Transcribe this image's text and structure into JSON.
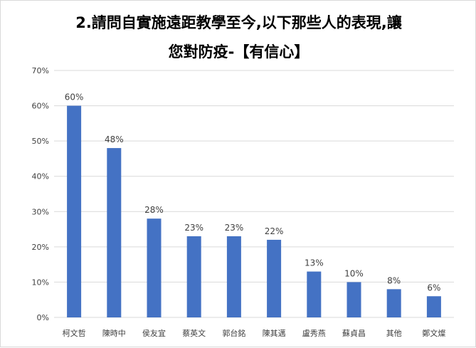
{
  "chart_data": {
    "type": "bar",
    "title_lines": [
      "2.請問自實施遠距教學至今,以下那些人的表現,讓",
      "您對防疫-【有信心】"
    ],
    "categories": [
      "柯文哲",
      "陳時中",
      "侯友宜",
      "蔡英文",
      "郭台銘",
      "陳其邁",
      "盧秀燕",
      "蘇貞昌",
      "其他",
      "鄭文燦"
    ],
    "values": [
      60,
      48,
      28,
      23,
      23,
      22,
      13,
      10,
      8,
      6
    ],
    "data_labels": [
      "60%",
      "48%",
      "28%",
      "23%",
      "23%",
      "22%",
      "13%",
      "10%",
      "8%",
      "6%"
    ],
    "y_ticks": [
      "0%",
      "10%",
      "20%",
      "30%",
      "40%",
      "50%",
      "60%",
      "70%"
    ],
    "ylim": [
      0,
      70
    ],
    "grid": true,
    "bar_color": "#4472c4"
  }
}
